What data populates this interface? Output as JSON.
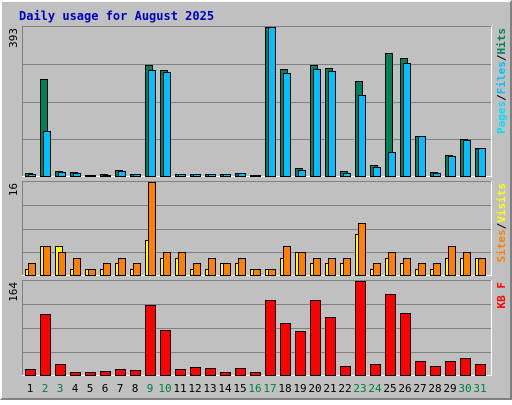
{
  "colors": {
    "background": "#c0c0c0",
    "frame_light": "#ffffff",
    "frame_dark": "#808080",
    "gridline": "#808080",
    "title": "#0000c0",
    "axis_text": "#000000",
    "weekend_day": "#00803c",
    "hits": "#00805c",
    "files": "#00c0ff",
    "pages": "#00e0ff",
    "sites": "#ff8000",
    "visits": "#ffff00",
    "kbytes": "#ff0000"
  },
  "chart_data": {
    "type": "bar",
    "title": "Daily usage for August 2025",
    "categories": [
      "1",
      "2",
      "3",
      "4",
      "5",
      "6",
      "7",
      "8",
      "9",
      "10",
      "11",
      "12",
      "13",
      "14",
      "15",
      "16",
      "17",
      "18",
      "19",
      "20",
      "21",
      "22",
      "23",
      "24",
      "25",
      "26",
      "27",
      "28",
      "29",
      "30",
      "31"
    ],
    "weekend_days": [
      "2",
      "3",
      "9",
      "10",
      "16",
      "17",
      "23",
      "24",
      "30",
      "31"
    ],
    "panels": [
      {
        "id": "top",
        "ymax_label": "393",
        "ymax": 393,
        "grid": true,
        "legend": [
          {
            "text": "Pages",
            "color_key": "pages"
          },
          {
            "text": "/",
            "color_key": "axis_text"
          },
          {
            "text": "Files",
            "color_key": "files"
          },
          {
            "text": "/",
            "color_key": "axis_text"
          },
          {
            "text": "Hits",
            "color_key": "hits"
          }
        ],
        "series": [
          {
            "color_key": "hits",
            "values": [
              8,
              255,
              12,
              10,
              3,
              4,
              15,
              6,
              293,
              279,
              6,
              5,
              5,
              5,
              8,
              3,
              393,
              281,
              20,
              292,
              284,
              12,
              250,
              30,
              325,
              310,
              105,
              10,
              55,
              98,
              75
            ]
          },
          {
            "color_key": "files",
            "values": [
              6,
              118,
              10,
              9,
              3,
              3,
              12,
              5,
              280,
              273,
              5,
              4,
              4,
              4,
              7,
              2,
              393,
              272,
              15,
              282,
              276,
              9,
              213,
              25,
              62,
              298,
              105,
              7,
              52,
              95,
              75
            ]
          }
        ]
      },
      {
        "id": "middle",
        "ymax_label": "16",
        "ymax": 16,
        "grid": true,
        "legend": [
          {
            "text": "Sites",
            "color_key": "sites"
          },
          {
            "text": "/",
            "color_key": "axis_text"
          },
          {
            "text": "Visits",
            "color_key": "visits"
          }
        ],
        "series": [
          {
            "color_key": "visits",
            "values": [
              1,
              5,
              5,
              1,
              1,
              1,
              2,
              1,
              6,
              3,
              3,
              1,
              1,
              2,
              2,
              1,
              1,
              3,
              4,
              2,
              2,
              2,
              7,
              1,
              3,
              2,
              1,
              1,
              3,
              3,
              3
            ]
          },
          {
            "color_key": "sites",
            "values": [
              2,
              5,
              4,
              3,
              1,
              2,
              3,
              2,
              16,
              4,
              4,
              2,
              3,
              2,
              3,
              1,
              1,
              5,
              4,
              3,
              3,
              3,
              9,
              2,
              4,
              3,
              2,
              2,
              5,
              4,
              3
            ]
          }
        ]
      },
      {
        "id": "bottom",
        "ymax_label": "164",
        "ymax": 164,
        "grid": true,
        "legend": [
          {
            "text": "KB F",
            "color_key": "kbytes"
          }
        ],
        "series": [
          {
            "color_key": "kbytes",
            "values": [
              11,
              106,
              19,
              6,
              6,
              7,
              10,
              9,
              122,
              78,
              11,
              14,
              12,
              6,
              13,
              5,
              130,
              90,
              76,
              131,
              102,
              15,
              164,
              20,
              141,
              108,
              24,
              16,
              24,
              30,
              20
            ]
          }
        ]
      }
    ]
  }
}
